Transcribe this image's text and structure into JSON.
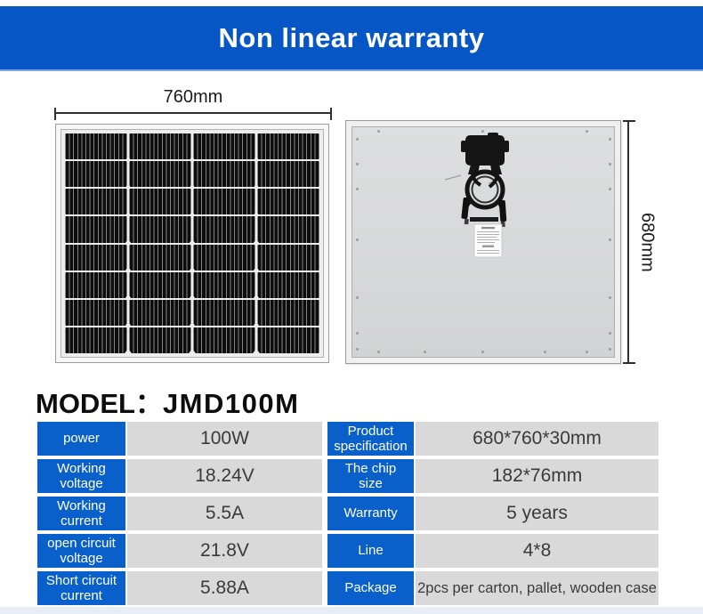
{
  "banner": {
    "title": "Non linear warranty"
  },
  "panel_front": {
    "width_label": "760mm"
  },
  "panel_back": {
    "height_label": "680mm"
  },
  "model": {
    "prefix": "MODEL：",
    "value": "JMD100M"
  },
  "spec_tables": {
    "left": {
      "rows": [
        {
          "label": "power",
          "value": "100W"
        },
        {
          "label": "Working voltage",
          "value": "18.24V"
        },
        {
          "label": "Working current",
          "value": "5.5A"
        },
        {
          "label": "open circuit voltage",
          "value": "21.8V"
        },
        {
          "label": "Short circuit current",
          "value": "5.88A"
        }
      ]
    },
    "right": {
      "rows": [
        {
          "label": "Product specification",
          "value": "680*760*30mm"
        },
        {
          "label": "The chip size",
          "value": "182*76mm"
        },
        {
          "label": "Warranty",
          "value": "5 years"
        },
        {
          "label": "Line",
          "value": "4*8"
        },
        {
          "label": "Package",
          "value": "2pcs per carton, pallet, wooden case"
        }
      ]
    }
  },
  "colors": {
    "banner_blue": "#0656c5",
    "table_header_blue": "#0a60cb",
    "value_cell_gray": "#d9d9d9",
    "footer_strip": "#e9eef6"
  }
}
